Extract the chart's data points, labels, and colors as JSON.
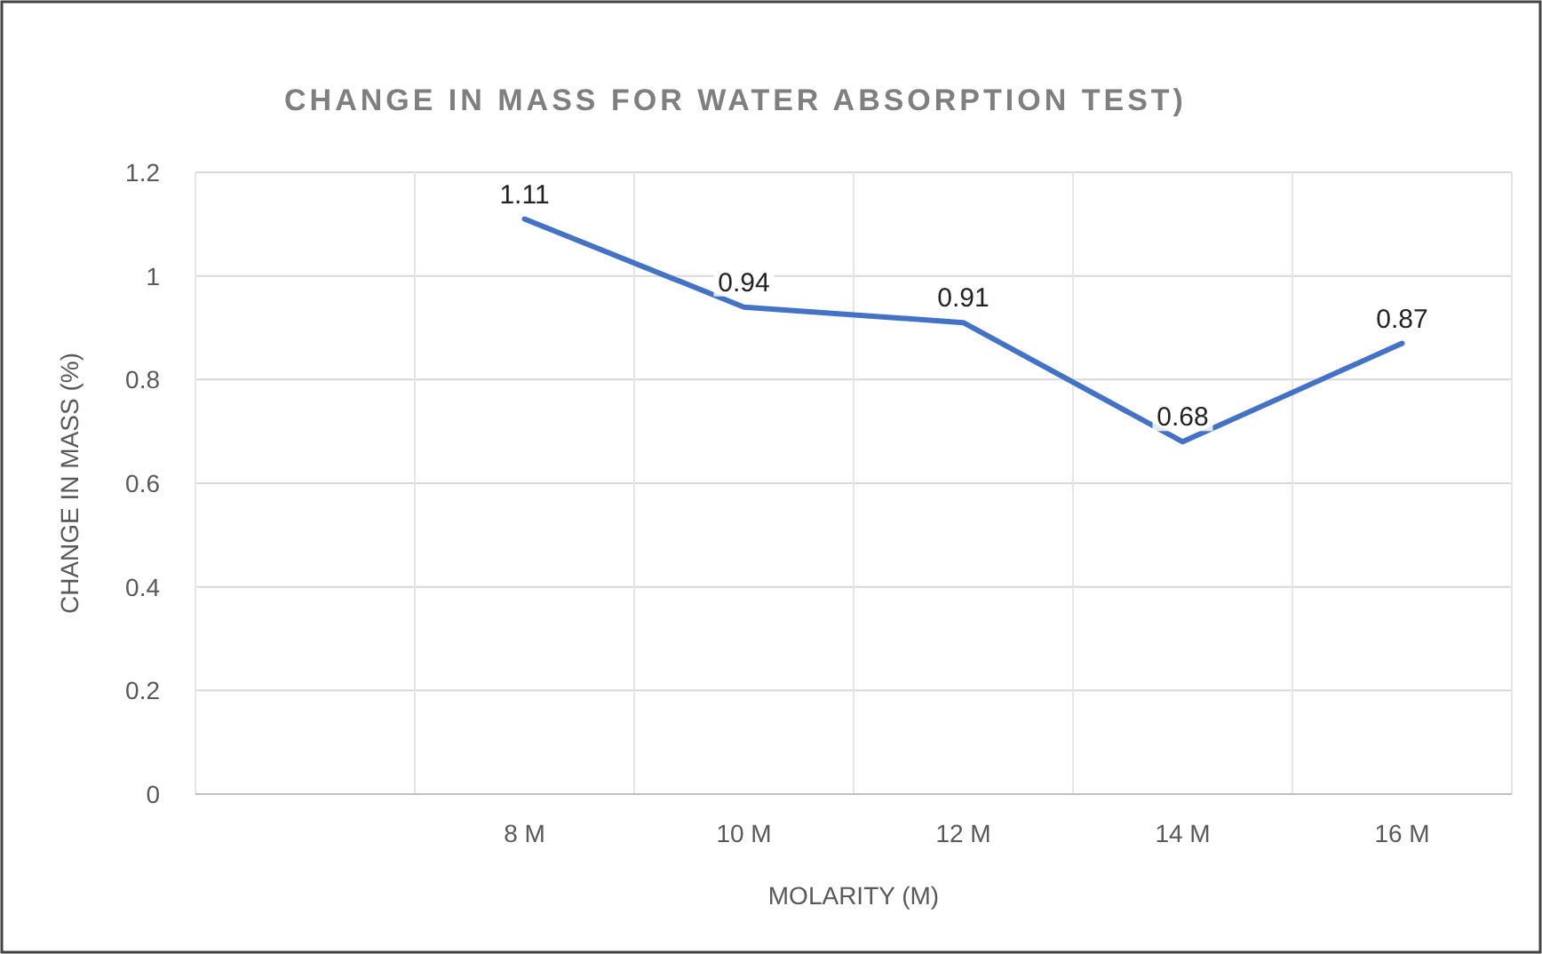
{
  "chart_data": {
    "type": "line",
    "title": "CHANGE IN MASS FOR WATER ABSORPTION TEST)",
    "xlabel": "MOLARITY  (M)",
    "ylabel": "CHANGE IN MASS (%)",
    "categories": [
      null,
      "8 M",
      "10 M",
      "12 M",
      "14 M",
      "16 M"
    ],
    "series": [
      {
        "color": "#4472c4",
        "values": [
          null,
          1.11,
          0.94,
          0.91,
          0.68,
          0.87
        ]
      }
    ],
    "ylim": [
      0,
      1.2
    ],
    "yticks": [
      0,
      0.2,
      0.4,
      0.6,
      0.8,
      1,
      1.2
    ],
    "grid": true,
    "data_labels": true,
    "marker": "none",
    "line_style": "solid"
  }
}
